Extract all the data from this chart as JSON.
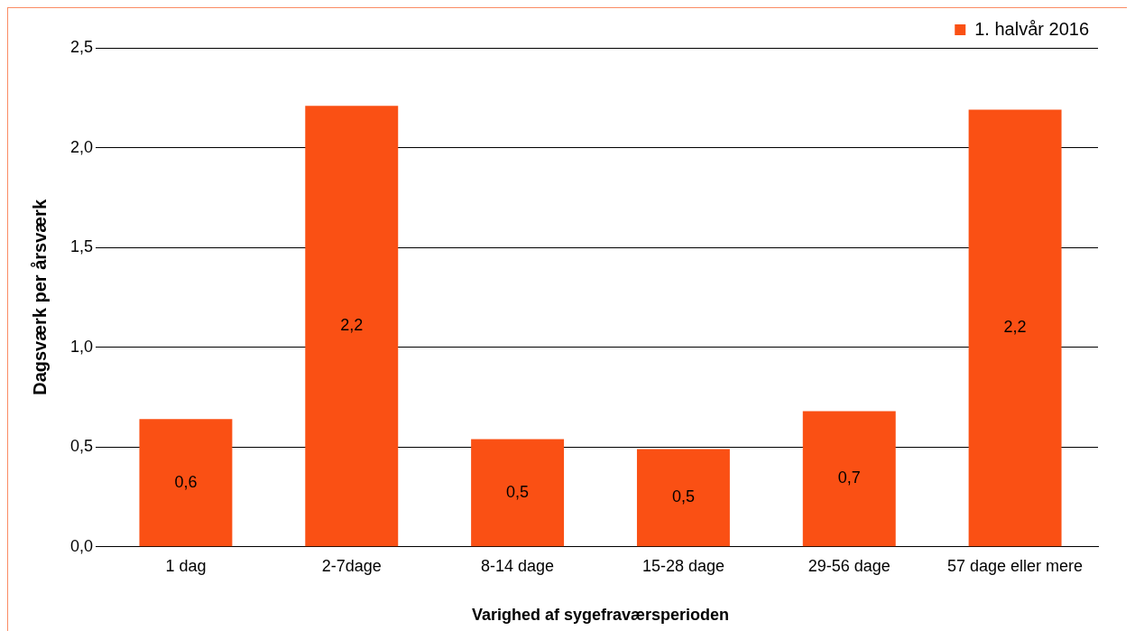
{
  "chart_data": {
    "type": "bar",
    "xlabel": "Varighed af sygefraværsperioden",
    "ylabel": "Dagsværk per årsværk",
    "categories": [
      "1 dag",
      "2-7dage",
      "8-14 dage",
      "15-28 dage",
      "29-56 dage",
      "57 dage eller mere"
    ],
    "series": [
      {
        "name": "1. halvår 2016",
        "color": "#fa5014",
        "values": [
          0.64,
          2.21,
          0.54,
          0.49,
          0.68,
          2.19
        ],
        "value_labels": [
          "0,6",
          "2,2",
          "0,5",
          "0,5",
          "0,7",
          "2,2"
        ]
      }
    ],
    "ylim": [
      0,
      2.5
    ],
    "yticks": [
      {
        "value": 0,
        "label": "0,0"
      },
      {
        "value": 0.5,
        "label": "0,5"
      },
      {
        "value": 1,
        "label": "1,0"
      },
      {
        "value": 1.5,
        "label": "1,5"
      },
      {
        "value": 2,
        "label": "2,0"
      },
      {
        "value": 2.5,
        "label": "2,5"
      }
    ],
    "grid": "y",
    "legend": "top right"
  }
}
